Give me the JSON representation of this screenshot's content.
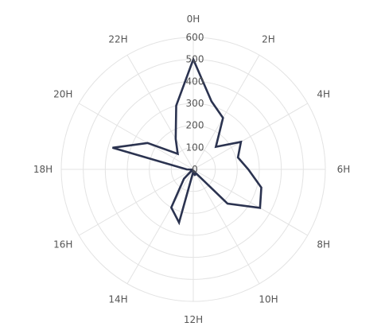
{
  "chart_data": {
    "type": "radar",
    "categories": [
      "0H",
      "1H",
      "2H",
      "3H",
      "4H",
      "5H",
      "6H",
      "7H",
      "8H",
      "9H",
      "10H",
      "11H",
      "12H",
      "13H",
      "14H",
      "15H",
      "16H",
      "17H",
      "18H",
      "19H",
      "20H",
      "21H",
      "22H",
      "23H"
    ],
    "angle_labels": [
      "0H",
      "2H",
      "4H",
      "6H",
      "8H",
      "10H",
      "12H",
      "14H",
      "16H",
      "18H",
      "20H",
      "22H"
    ],
    "radial_ticks": [
      "0",
      "100",
      "200",
      "300",
      "400",
      "500",
      "600"
    ],
    "rlim": [
      0,
      600
    ],
    "series": [
      {
        "values": [
          500,
          320,
          270,
          145,
          250,
          210,
          250,
          320,
          350,
          220,
          15,
          30,
          10,
          250,
          200,
          60,
          5,
          5,
          30,
          380,
          240,
          100,
          160,
          300
        ]
      }
    ],
    "grid": true,
    "legend": "none",
    "colors": {
      "line": "#2b3350",
      "grid": "#e3e3e3",
      "label": "#555555"
    }
  }
}
